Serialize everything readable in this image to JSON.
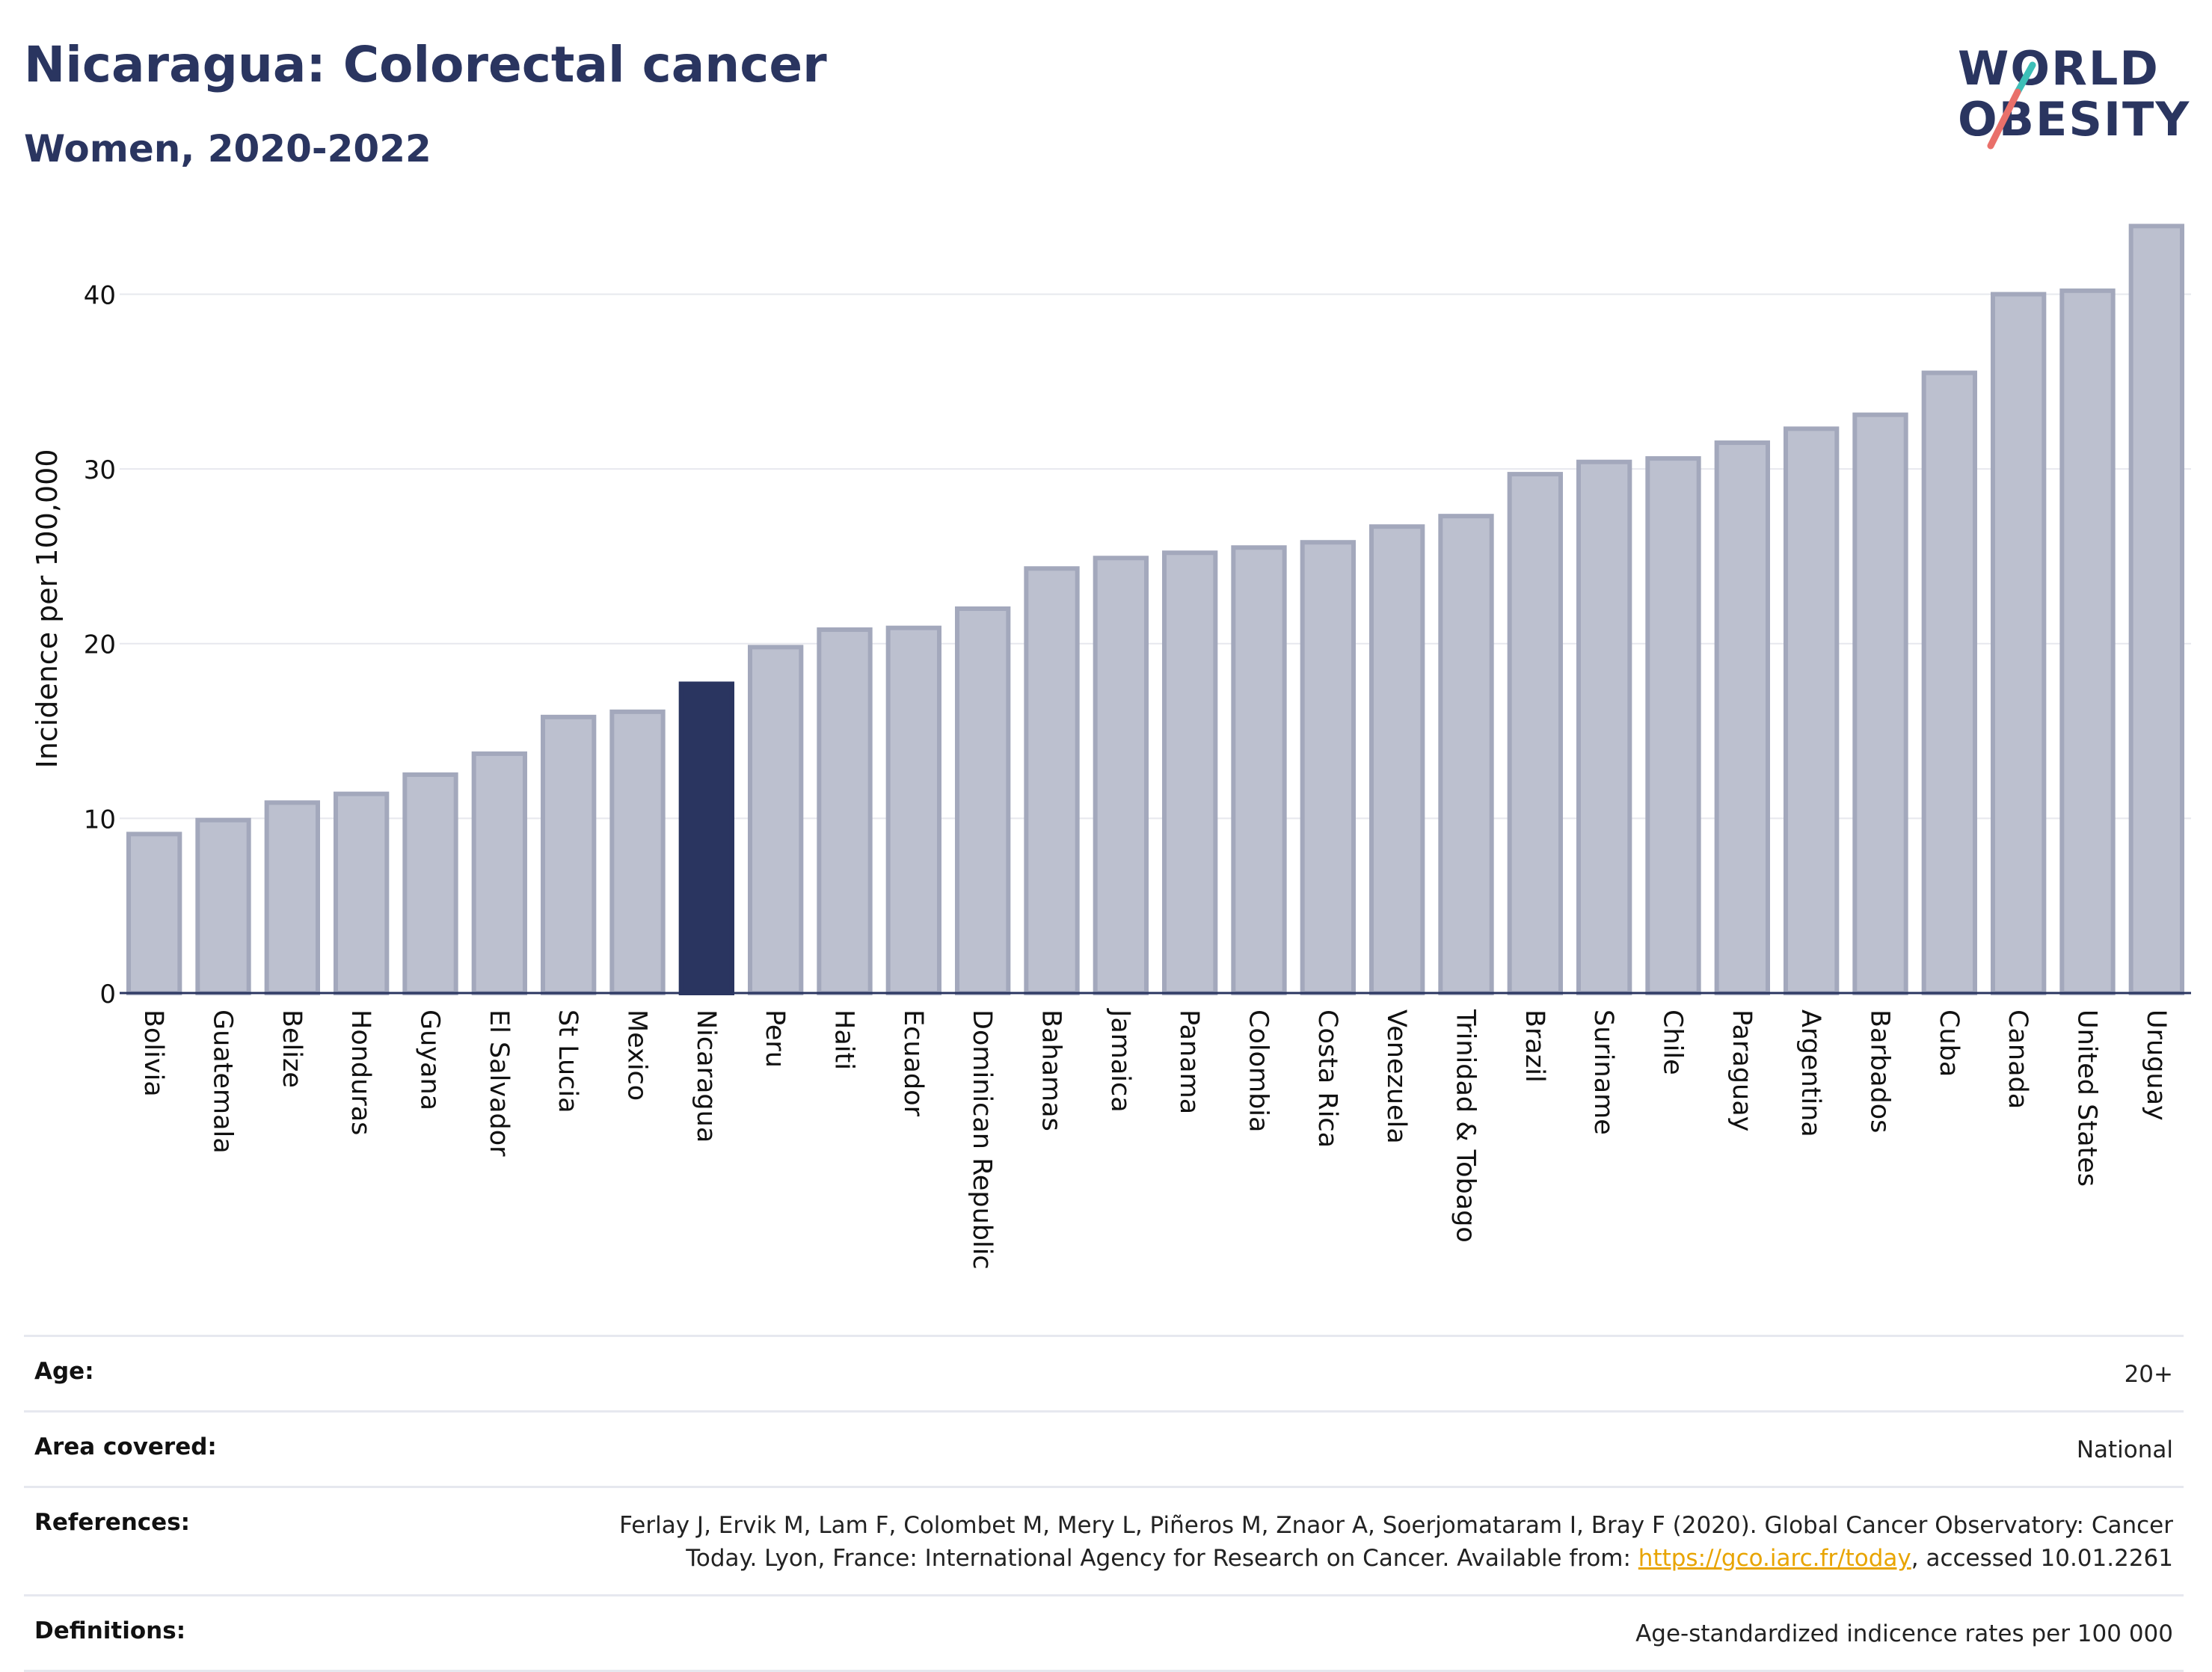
{
  "header": {
    "title": "Nicaragua: Colorectal cancer",
    "subtitle": "Women, 2020-2022"
  },
  "logo": {
    "line1": "WORLD",
    "line2": "OBESITY"
  },
  "colors": {
    "bar_default": "#bcc0cf",
    "bar_default_border": "#a3a8bc",
    "bar_highlight": "#2a3560",
    "text_dark": "#2a3560",
    "link": "#e8a400",
    "logo_teal": "#3dbfb8",
    "logo_coral": "#e9706a"
  },
  "chart_data": {
    "type": "bar",
    "ylabel": "Incidence per 100,000",
    "ylim": [
      0,
      44
    ],
    "yticks": [
      0,
      10,
      20,
      30,
      40
    ],
    "grid": true,
    "highlight": "Nicaragua",
    "categories": [
      "Bolivia",
      "Guatemala",
      "Belize",
      "Honduras",
      "Guyana",
      "El Salvador",
      "St Lucia",
      "Mexico",
      "Nicaragua",
      "Peru",
      "Haiti",
      "Ecuador",
      "Dominican Republic",
      "Bahamas",
      "Jamaica",
      "Panama",
      "Colombia",
      "Costa Rica",
      "Venezuela",
      "Trinidad & Tobago",
      "Brazil",
      "Suriname",
      "Chile",
      "Paraguay",
      "Argentina",
      "Barbados",
      "Cuba",
      "Canada",
      "United States",
      "Uruguay"
    ],
    "values": [
      9.1,
      9.9,
      10.9,
      11.4,
      12.5,
      13.7,
      15.8,
      16.1,
      17.7,
      19.8,
      20.8,
      20.9,
      22.0,
      24.3,
      24.9,
      25.2,
      25.5,
      25.8,
      26.7,
      27.3,
      29.7,
      30.4,
      30.6,
      31.5,
      32.3,
      33.1,
      35.5,
      40.0,
      40.2,
      43.9
    ]
  },
  "info": {
    "age": {
      "label": "Age:",
      "value": "20+"
    },
    "area": {
      "label": "Area covered:",
      "value": "National"
    },
    "references": {
      "label": "References:",
      "text_before": "Ferlay J, Ervik M, Lam F, Colombet M, Mery L, Piñeros M, Znaor A, Soerjomataram I, Bray F (2020). Global Cancer Observatory: Cancer Today. Lyon, France: International Agency for Research on Cancer. Available from: ",
      "link": "https://gco.iarc.fr/today",
      "text_after": ", accessed 10.01.2261"
    },
    "definitions": {
      "label": "Definitions:",
      "value": "Age-standardized indicence rates per 100 000"
    }
  }
}
